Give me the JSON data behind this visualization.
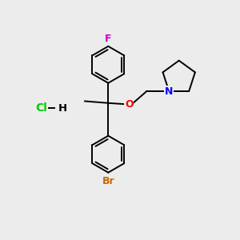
{
  "bg_color": "#ececec",
  "atom_colors": {
    "F": "#cc00cc",
    "O": "#ff0000",
    "N": "#0000ff",
    "Br": "#cc6600",
    "Cl": "#00cc00",
    "H": "#000000",
    "C": "#000000"
  },
  "line_color": "#000000",
  "line_width": 1.4,
  "font_size": 8.5
}
